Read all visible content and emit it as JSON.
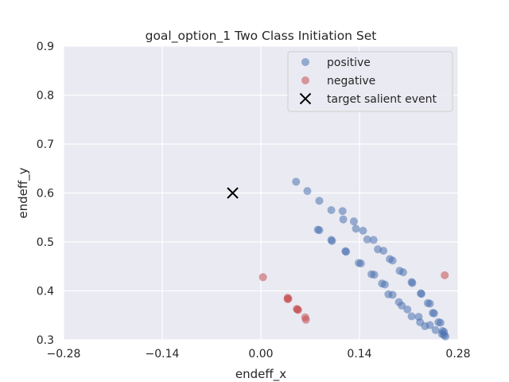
{
  "chart_data": {
    "type": "scatter",
    "title": "goal_option_1 Two Class Initiation Set",
    "xlabel": "endeff_x",
    "ylabel": "endeff_y",
    "xlim": [
      -0.28,
      0.28
    ],
    "ylim": [
      0.3,
      0.9
    ],
    "xticks": [
      "−0.28",
      "−0.14",
      "0.00",
      "0.14",
      "0.28"
    ],
    "xtick_values": [
      -0.28,
      -0.14,
      0.0,
      0.14,
      0.28
    ],
    "yticks": [
      "0.3",
      "0.4",
      "0.5",
      "0.6",
      "0.7",
      "0.8",
      "0.9"
    ],
    "ytick_values": [
      0.3,
      0.4,
      0.5,
      0.6,
      0.7,
      0.8,
      0.9
    ],
    "grid": true,
    "background": "#eaeaf2",
    "legend_position": "top-right",
    "series": [
      {
        "name": "positive",
        "color": "#4c72b0",
        "marker": "circle",
        "points": [
          [
            0.05,
            0.623
          ],
          [
            0.066,
            0.604
          ],
          [
            0.083,
            0.584
          ],
          [
            0.1,
            0.565
          ],
          [
            0.116,
            0.563
          ],
          [
            0.117,
            0.546
          ],
          [
            0.132,
            0.542
          ],
          [
            0.135,
            0.527
          ],
          [
            0.145,
            0.523
          ],
          [
            0.151,
            0.505
          ],
          [
            0.16,
            0.504
          ],
          [
            0.166,
            0.485
          ],
          [
            0.174,
            0.482
          ],
          [
            0.183,
            0.465
          ],
          [
            0.187,
            0.462
          ],
          [
            0.197,
            0.441
          ],
          [
            0.202,
            0.438
          ],
          [
            0.214,
            0.418
          ],
          [
            0.215,
            0.416
          ],
          [
            0.227,
            0.395
          ],
          [
            0.228,
            0.394
          ],
          [
            0.237,
            0.375
          ],
          [
            0.24,
            0.374
          ],
          [
            0.244,
            0.355
          ],
          [
            0.246,
            0.354
          ],
          [
            0.252,
            0.336
          ],
          [
            0.255,
            0.335
          ],
          [
            0.258,
            0.318
          ],
          [
            0.26,
            0.316
          ],
          [
            0.26,
            0.31
          ],
          [
            0.262,
            0.307
          ],
          [
            0.081,
            0.525
          ],
          [
            0.083,
            0.524
          ],
          [
            0.1,
            0.504
          ],
          [
            0.101,
            0.502
          ],
          [
            0.12,
            0.481
          ],
          [
            0.121,
            0.48
          ],
          [
            0.139,
            0.457
          ],
          [
            0.142,
            0.456
          ],
          [
            0.157,
            0.434
          ],
          [
            0.161,
            0.433
          ],
          [
            0.172,
            0.415
          ],
          [
            0.176,
            0.413
          ],
          [
            0.181,
            0.393
          ],
          [
            0.187,
            0.392
          ],
          [
            0.196,
            0.377
          ],
          [
            0.2,
            0.37
          ],
          [
            0.208,
            0.362
          ],
          [
            0.214,
            0.348
          ],
          [
            0.224,
            0.347
          ],
          [
            0.226,
            0.336
          ],
          [
            0.233,
            0.328
          ],
          [
            0.24,
            0.33
          ],
          [
            0.248,
            0.32
          ],
          [
            0.257,
            0.312
          ]
        ]
      },
      {
        "name": "negative",
        "color": "#c44e52",
        "marker": "circle",
        "points": [
          [
            0.003,
            0.428
          ],
          [
            0.038,
            0.386
          ],
          [
            0.038,
            0.383
          ],
          [
            0.039,
            0.384
          ],
          [
            0.051,
            0.363
          ],
          [
            0.052,
            0.362
          ],
          [
            0.053,
            0.361
          ],
          [
            0.063,
            0.346
          ],
          [
            0.064,
            0.341
          ],
          [
            0.261,
            0.432
          ]
        ]
      },
      {
        "name": "target salient event",
        "color": "#000000",
        "marker": "x",
        "points": [
          [
            -0.04,
            0.6
          ]
        ]
      }
    ]
  }
}
